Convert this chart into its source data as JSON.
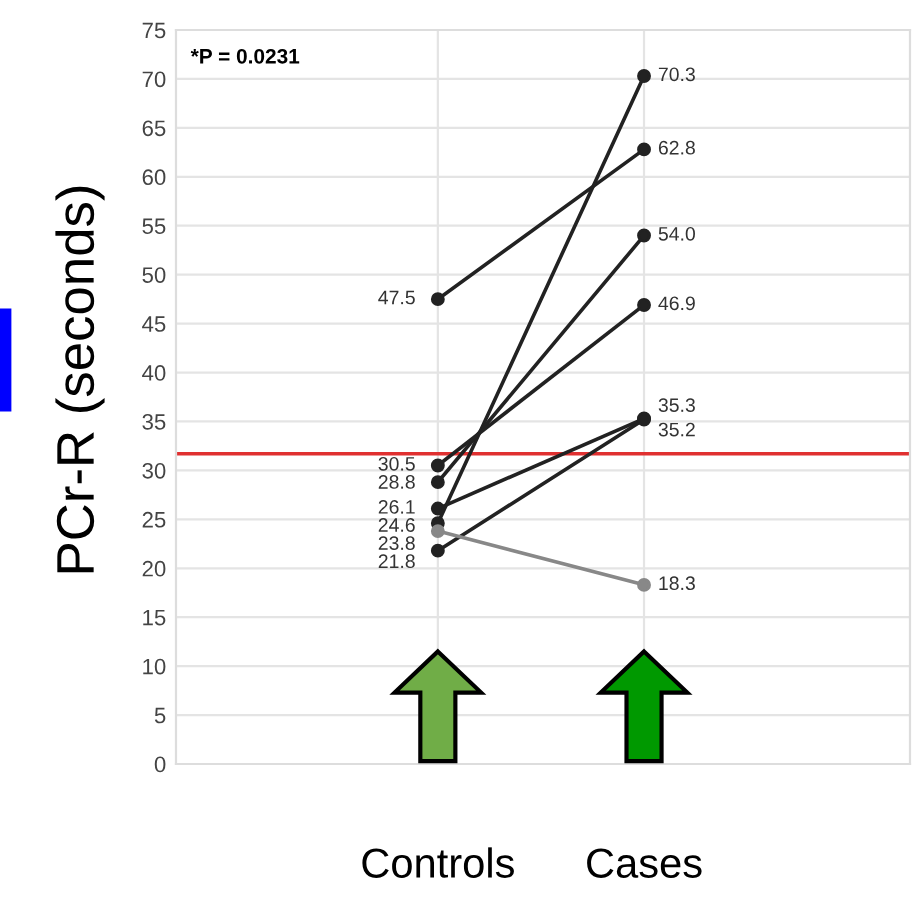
{
  "chart_data": {
    "type": "line",
    "ylabel": "PCr-R (seconds)",
    "categories": [
      "Controls",
      "Cases"
    ],
    "series": [
      {
        "color": "#222222",
        "values": [
          47.5,
          62.8
        ],
        "value_labels": [
          "47.5",
          "62.8"
        ]
      },
      {
        "color": "#222222",
        "values": [
          24.6,
          70.3
        ],
        "value_labels": [
          "24.6",
          "70.3"
        ]
      },
      {
        "color": "#222222",
        "values": [
          28.8,
          54.0
        ],
        "value_labels": [
          "28.8",
          "54.0"
        ]
      },
      {
        "color": "#222222",
        "values": [
          30.5,
          46.9
        ],
        "value_labels": [
          "30.5",
          "46.9"
        ]
      },
      {
        "color": "#222222",
        "values": [
          26.1,
          35.3
        ],
        "value_labels": [
          "26.1",
          "35.3"
        ]
      },
      {
        "color": "#222222",
        "values": [
          21.8,
          35.2
        ],
        "value_labels": [
          "21.8",
          "35.2"
        ]
      },
      {
        "color": "#888888",
        "values": [
          23.8,
          18.3
        ],
        "value_labels": [
          "23.8",
          "18.3"
        ]
      }
    ],
    "marker": "circle",
    "line_style": "solid",
    "ylim": [
      0,
      75
    ],
    "yticks": [
      0,
      5,
      10,
      15,
      20,
      25,
      30,
      35,
      40,
      45,
      50,
      55,
      60,
      65,
      70,
      75
    ],
    "grid": true,
    "ref_lines": [
      {
        "axis": "y",
        "value": 31.7,
        "color": "#e03030"
      }
    ],
    "annotations": [
      "*P = 0.0231"
    ]
  }
}
